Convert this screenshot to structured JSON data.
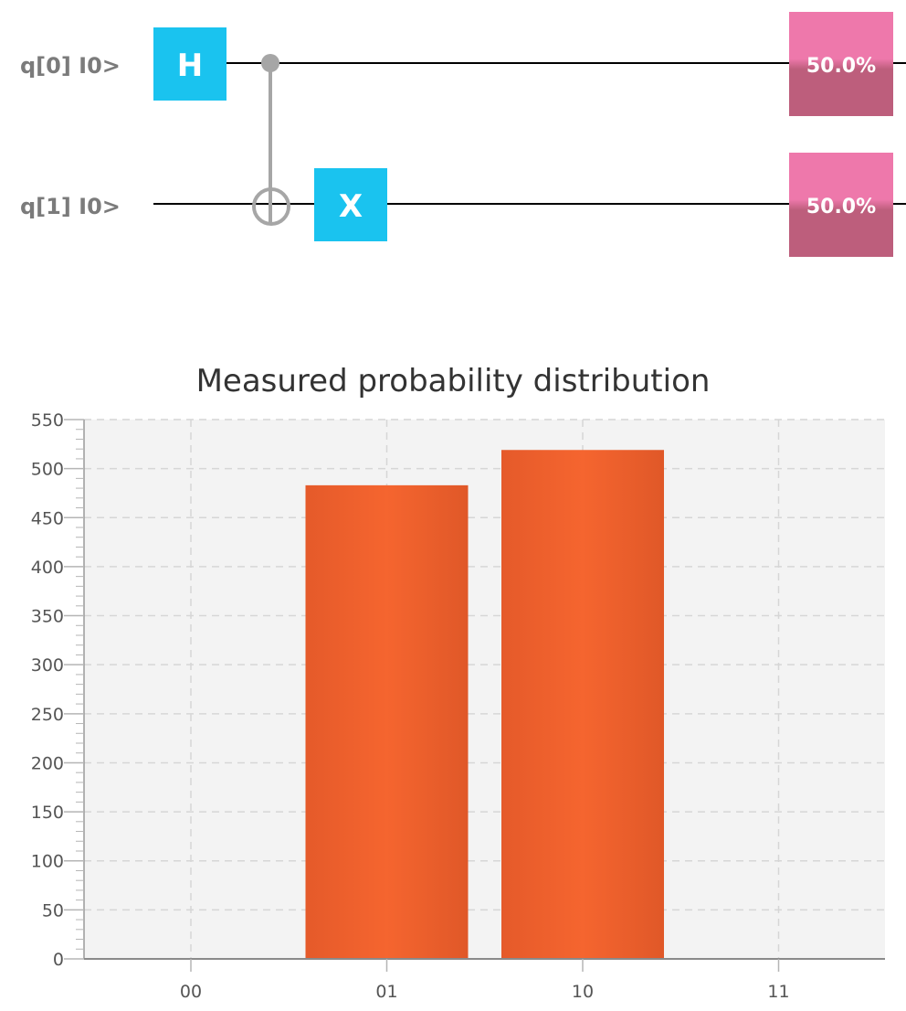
{
  "circuit": {
    "qubits": [
      {
        "label": "q[0] I0>"
      },
      {
        "label": "q[1] I0>"
      }
    ],
    "gates": [
      {
        "name": "H",
        "qubit": 0,
        "color": "#1ac3ef"
      },
      {
        "name": "X",
        "qubit": 1,
        "color": "#1ac3ef"
      }
    ],
    "cnot": {
      "control": 0,
      "target": 1,
      "color": "#a6a6a6"
    },
    "measurements": [
      {
        "qubit": 0,
        "value": "50.0%"
      },
      {
        "qubit": 1,
        "value": "50.0%"
      }
    ],
    "measure_color_top": "#ee78ab",
    "measure_color_bottom": "#bd5e7c"
  },
  "chart_data": {
    "type": "bar",
    "title": "Measured probability distribution",
    "categories": [
      "00",
      "01",
      "10",
      "11"
    ],
    "values": [
      0,
      483,
      519,
      0
    ],
    "yticks": [
      "0",
      "50",
      "100",
      "150",
      "200",
      "250",
      "300",
      "350",
      "400",
      "450",
      "500",
      "550"
    ],
    "ylim": [
      0,
      550
    ],
    "grid": true,
    "bar_color": "#f0612e",
    "plot_background": "#f3f3f3"
  }
}
